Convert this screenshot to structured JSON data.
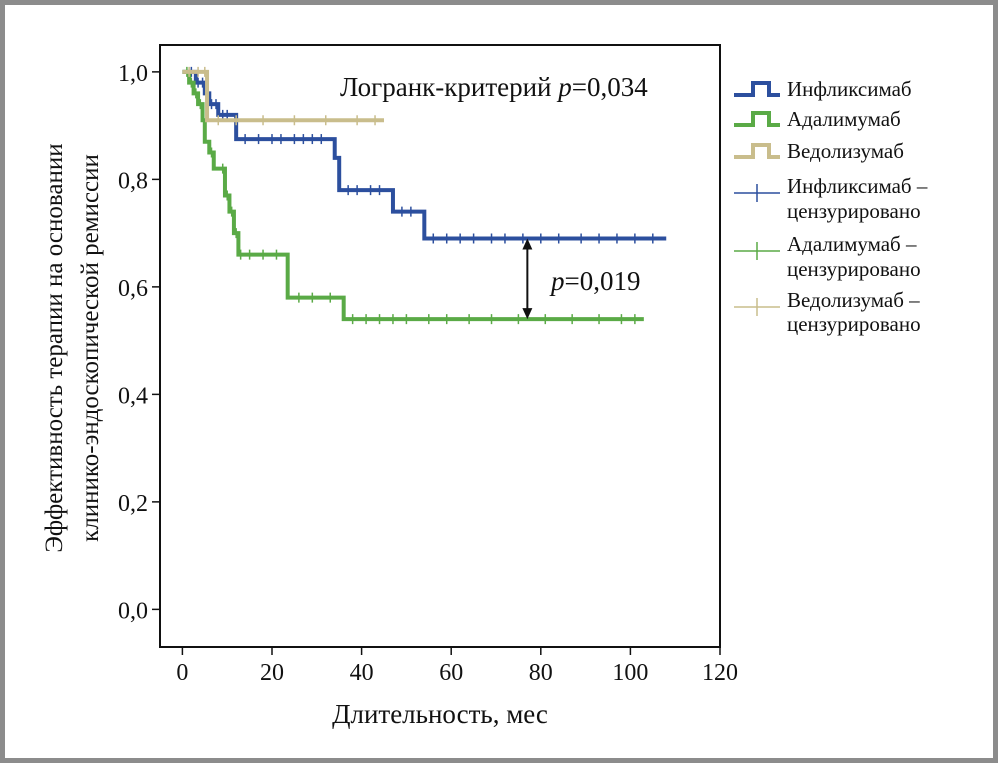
{
  "chart_data": {
    "type": "line",
    "subtype": "kaplan-meier",
    "xlabel": "Длительность, мес",
    "ylabel_line1": "Эффективность терапии на основании",
    "ylabel_line2": "клинико-эндоскопической ремиссии",
    "xlim": [
      -5,
      120
    ],
    "ylim": [
      -0.07,
      1.05
    ],
    "x_ticks": [
      0,
      20,
      40,
      60,
      80,
      100,
      120
    ],
    "x_tick_labels": [
      "0",
      "20",
      "40",
      "60",
      "80",
      "100",
      "120"
    ],
    "y_ticks": [
      0.0,
      0.2,
      0.4,
      0.6,
      0.8,
      1.0
    ],
    "y_tick_labels": [
      "0,0",
      "0,2",
      "0,4",
      "0,6",
      "0,8",
      "1,0"
    ],
    "grid": false,
    "legend_position": "right-outside",
    "annotations": {
      "logrank_prefix": "Логранк-критерий ",
      "logrank_p": "p",
      "logrank_value": "=0,034",
      "pair_p": "p",
      "pair_value": "=0,019",
      "arrow_x": 77,
      "arrow_y_top": 0.69,
      "arrow_y_bottom": 0.54
    },
    "series": [
      {
        "name": "Инфликсимаб",
        "color": "#2c4f9e",
        "steps": [
          [
            0,
            1.0
          ],
          [
            3,
            0.98
          ],
          [
            5,
            0.96
          ],
          [
            6,
            0.94
          ],
          [
            8,
            0.92
          ],
          [
            12,
            0.875
          ],
          [
            34,
            0.84
          ],
          [
            35,
            0.78
          ],
          [
            47,
            0.74
          ],
          [
            54,
            0.69
          ],
          [
            108,
            0.69
          ]
        ],
        "censored": [
          [
            2,
            1.0
          ],
          [
            3.5,
            0.98
          ],
          [
            4.5,
            0.98
          ],
          [
            6.5,
            0.94
          ],
          [
            7.5,
            0.94
          ],
          [
            9,
            0.92
          ],
          [
            10,
            0.92
          ],
          [
            14,
            0.875
          ],
          [
            17,
            0.875
          ],
          [
            20,
            0.875
          ],
          [
            22,
            0.875
          ],
          [
            25,
            0.875
          ],
          [
            27,
            0.875
          ],
          [
            29,
            0.875
          ],
          [
            31,
            0.875
          ],
          [
            37,
            0.78
          ],
          [
            39,
            0.78
          ],
          [
            42,
            0.78
          ],
          [
            44,
            0.78
          ],
          [
            49,
            0.74
          ],
          [
            51,
            0.74
          ],
          [
            56,
            0.69
          ],
          [
            59,
            0.69
          ],
          [
            62,
            0.69
          ],
          [
            65,
            0.69
          ],
          [
            69,
            0.69
          ],
          [
            72,
            0.69
          ],
          [
            76,
            0.69
          ],
          [
            80,
            0.69
          ],
          [
            84,
            0.69
          ],
          [
            89,
            0.69
          ],
          [
            93,
            0.69
          ],
          [
            97,
            0.69
          ],
          [
            101,
            0.69
          ],
          [
            105,
            0.69
          ]
        ]
      },
      {
        "name": "Адалимумаб",
        "color": "#5aaa46",
        "steps": [
          [
            0,
            1.0
          ],
          [
            1.5,
            0.98
          ],
          [
            2.5,
            0.96
          ],
          [
            3.5,
            0.94
          ],
          [
            4.5,
            0.91
          ],
          [
            5,
            0.87
          ],
          [
            6,
            0.85
          ],
          [
            7,
            0.82
          ],
          [
            9.5,
            0.77
          ],
          [
            10.5,
            0.74
          ],
          [
            11.5,
            0.7
          ],
          [
            12.5,
            0.66
          ],
          [
            23.5,
            0.58
          ],
          [
            36,
            0.54
          ],
          [
            103,
            0.54
          ]
        ],
        "censored": [
          [
            1,
            1.0
          ],
          [
            2,
            0.98
          ],
          [
            3,
            0.96
          ],
          [
            4,
            0.94
          ],
          [
            6.5,
            0.85
          ],
          [
            9,
            0.82
          ],
          [
            10,
            0.77
          ],
          [
            11,
            0.74
          ],
          [
            12,
            0.7
          ],
          [
            13,
            0.66
          ],
          [
            15,
            0.66
          ],
          [
            18,
            0.66
          ],
          [
            21,
            0.66
          ],
          [
            26,
            0.58
          ],
          [
            29,
            0.58
          ],
          [
            33,
            0.58
          ],
          [
            38,
            0.54
          ],
          [
            41,
            0.54
          ],
          [
            44,
            0.54
          ],
          [
            47,
            0.54
          ],
          [
            50,
            0.54
          ],
          [
            55,
            0.54
          ],
          [
            59,
            0.54
          ],
          [
            64,
            0.54
          ],
          [
            69,
            0.54
          ],
          [
            75,
            0.54
          ],
          [
            81,
            0.54
          ],
          [
            87,
            0.54
          ],
          [
            93,
            0.54
          ],
          [
            98,
            0.54
          ],
          [
            101,
            0.54
          ]
        ]
      },
      {
        "name": "Ведолизумаб",
        "color": "#c9bd8c",
        "steps": [
          [
            0,
            1.0
          ],
          [
            5.5,
            1.0
          ],
          [
            5.5,
            0.91
          ],
          [
            45,
            0.91
          ]
        ],
        "censored": [
          [
            1.5,
            1.0
          ],
          [
            3.5,
            1.0
          ],
          [
            5,
            1.0
          ],
          [
            8,
            0.91
          ],
          [
            12,
            0.91
          ],
          [
            18,
            0.91
          ],
          [
            25,
            0.91
          ],
          [
            32,
            0.91
          ],
          [
            39,
            0.91
          ],
          [
            43,
            0.91
          ]
        ]
      }
    ],
    "legend": [
      {
        "label": "Инфликсимаб",
        "label2": "",
        "kind": "step",
        "color": "#2c4f9e"
      },
      {
        "label": "Адалимумаб",
        "label2": "",
        "kind": "step",
        "color": "#5aaa46"
      },
      {
        "label": "Ведолизумаб",
        "label2": "",
        "kind": "step",
        "color": "#c9bd8c"
      },
      {
        "label": "Инфликсимаб –",
        "label2": "цензурировано",
        "kind": "censor",
        "color": "#2c4f9e"
      },
      {
        "label": "Адалимумаб –",
        "label2": "цензурировано",
        "kind": "censor",
        "color": "#5aaa46"
      },
      {
        "label": "Ведолизумаб –",
        "label2": "цензурировано",
        "kind": "censor",
        "color": "#c9bd8c"
      }
    ]
  }
}
